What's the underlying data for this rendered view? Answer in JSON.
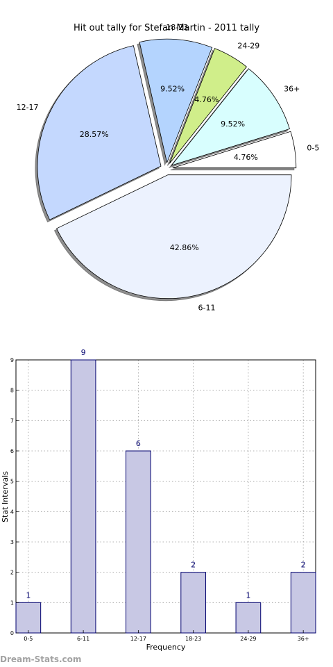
{
  "watermark": "Dream-Stats.com",
  "chart_data": [
    {
      "type": "pie",
      "title": "Hit out tally for Stefan Martin - 2011 tally",
      "shadow": true,
      "exploded": true,
      "slices": [
        {
          "label": "0-5",
          "value": 1,
          "pct_label": "4.76%",
          "color": "#ffffff"
        },
        {
          "label": "36+",
          "value": 2,
          "pct_label": "9.52%",
          "color": "#d8fefe"
        },
        {
          "label": "24-29",
          "value": 1,
          "pct_label": "4.76%",
          "color": "#d0ee8a"
        },
        {
          "label": "18-23",
          "value": 2,
          "pct_label": "9.52%",
          "color": "#b4d4fe"
        },
        {
          "label": "12-17",
          "value": 6,
          "pct_label": "28.57%",
          "color": "#c4d8fe"
        },
        {
          "label": "6-11",
          "value": 9,
          "pct_label": "42.86%",
          "color": "#ecf2fe"
        }
      ]
    },
    {
      "type": "bar",
      "categories": [
        "0-5",
        "6-11",
        "12-17",
        "18-23",
        "24-29",
        "36+"
      ],
      "values": [
        1,
        9,
        6,
        2,
        1,
        2
      ],
      "data_labels": [
        "1",
        "9",
        "6",
        "2",
        "1",
        "2"
      ],
      "xlabel": "Frequency",
      "ylabel": "Stat Intervals",
      "ylim": [
        0,
        9
      ],
      "yticks": [
        "0",
        "1",
        "2",
        "3",
        "4",
        "5",
        "6",
        "7",
        "8",
        "9"
      ],
      "grid": true,
      "bar_color": "#c8c8e4",
      "edge_color": "#00006e",
      "label_color": "#00006e"
    }
  ]
}
